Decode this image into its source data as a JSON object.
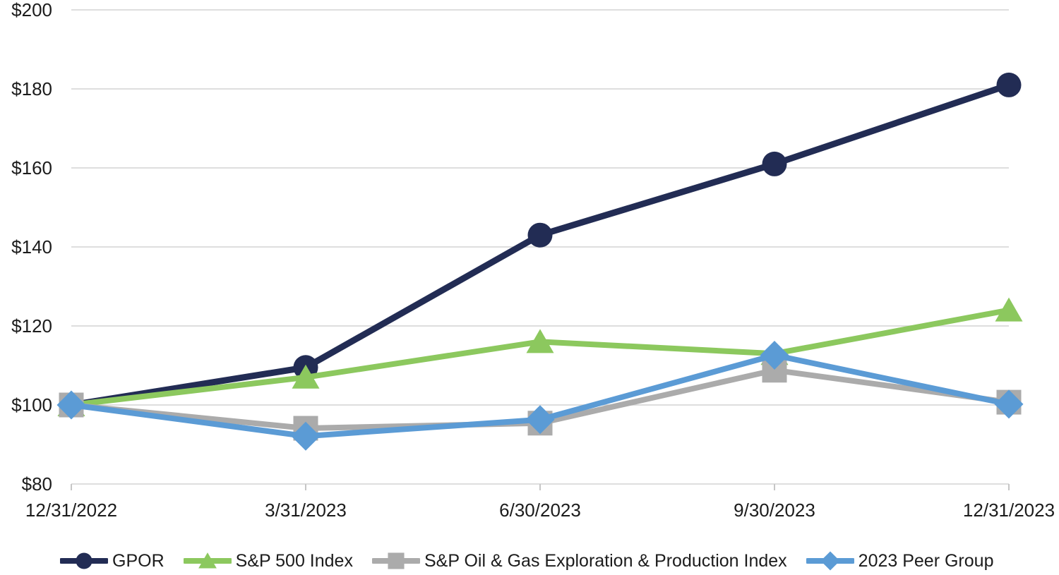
{
  "chart_data": {
    "type": "line",
    "title": "",
    "xlabel": "",
    "ylabel": "",
    "categories": [
      "12/31/2022",
      "3/31/2023",
      "6/30/2023",
      "9/30/2023",
      "12/31/2023"
    ],
    "series": [
      {
        "name": "GPOR",
        "marker": "circle",
        "color": "#222C54",
        "line_width": 9,
        "values": [
          100,
          109.5,
          143,
          161,
          181
        ]
      },
      {
        "name": "S&P 500 Index",
        "marker": "triangle",
        "color": "#8CC85E",
        "line_width": 8,
        "values": [
          100,
          107,
          116,
          113,
          124
        ]
      },
      {
        "name": "S&P Oil & Gas Exploration & Production Index",
        "marker": "square",
        "color": "#ABABAB",
        "line_width": 8,
        "values": [
          100,
          94.1,
          95.4,
          108.8,
          100.7
        ]
      },
      {
        "name": "2023 Peer Group",
        "marker": "diamond",
        "color": "#5B9BD5",
        "line_width": 8,
        "values": [
          100,
          92.1,
          96.3,
          112.6,
          100.2
        ]
      }
    ],
    "ylim": [
      80,
      200
    ],
    "ytick_values": [
      80,
      100,
      120,
      140,
      160,
      180,
      200
    ],
    "ytick_labels": [
      "$80",
      "$100",
      "$120",
      "$140",
      "$160",
      "$180",
      "$200"
    ],
    "grid": true,
    "legend_position": "bottom"
  },
  "axis": {
    "grid_color": "#D9D9D9",
    "tick_color": "#C6C6C6",
    "label_color": "#1C1C1C"
  }
}
